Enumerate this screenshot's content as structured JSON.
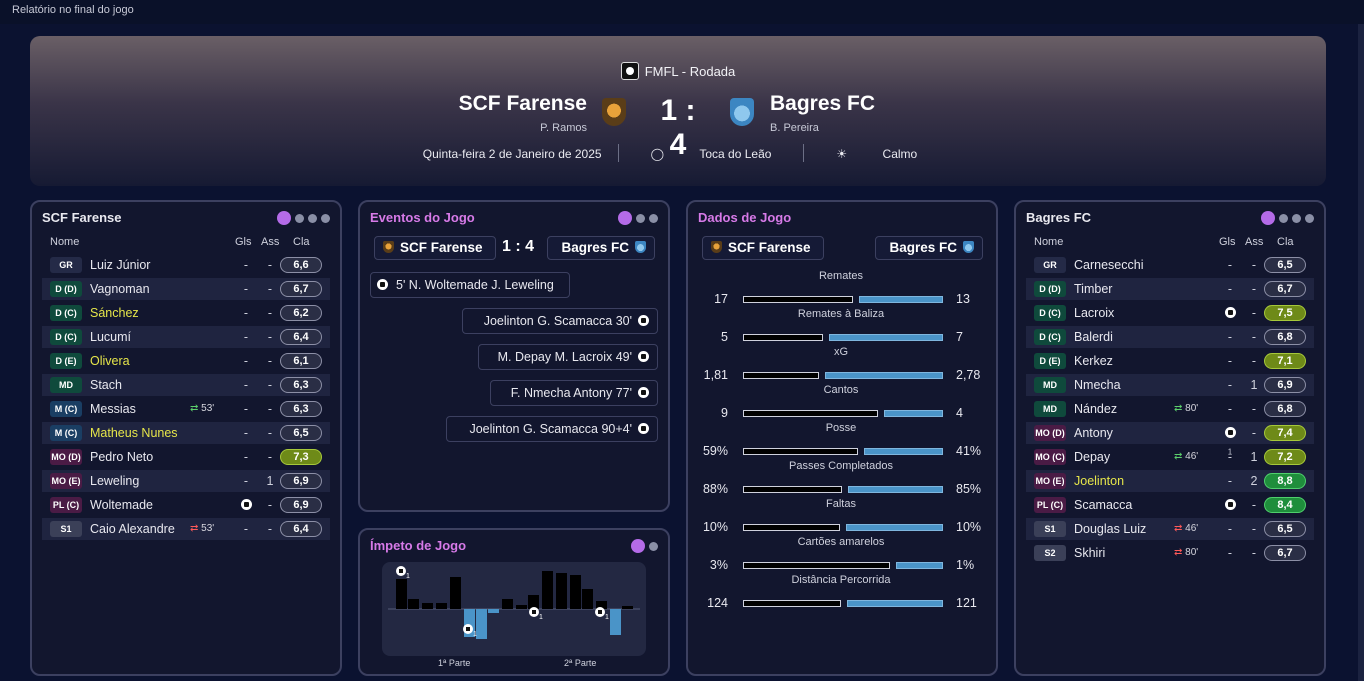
{
  "window": {
    "title": "Relatório no final do jogo"
  },
  "header": {
    "competition": "FMFL - Rodada",
    "home": {
      "name": "SCF Farense",
      "coach": "P. Ramos"
    },
    "away": {
      "name": "Bagres FC",
      "coach": "B. Pereira"
    },
    "score": "1 : 4",
    "date": "Quinta-feira 2 de Janeiro de 2025",
    "stadium": "Toca do Leão",
    "weather": "Calmo"
  },
  "columns": {
    "name": "Nome",
    "goals": "Gls",
    "assists": "Ass",
    "rating": "Cla"
  },
  "home_panel": {
    "title": "SCF Farense",
    "players": [
      {
        "pos": "GR",
        "name": "Luiz Júnior",
        "goals": "-",
        "assists": "-",
        "rating": "6,6"
      },
      {
        "pos": "D (D)",
        "name": "Vagnoman",
        "goals": "-",
        "assists": "-",
        "rating": "6,7"
      },
      {
        "pos": "D (C)",
        "name": "Sánchez",
        "goals": "-",
        "assists": "-",
        "rating": "6,2"
      },
      {
        "pos": "D (C)",
        "name": "Lucumí",
        "goals": "-",
        "assists": "-",
        "rating": "6,4"
      },
      {
        "pos": "D (E)",
        "name": "Olivera",
        "goals": "-",
        "assists": "-",
        "rating": "6,1"
      },
      {
        "pos": "MD",
        "name": "Stach",
        "goals": "-",
        "assists": "-",
        "rating": "6,3"
      },
      {
        "pos": "M (C)",
        "name": "Messias",
        "sub": "53'",
        "goals": "-",
        "assists": "-",
        "rating": "6,3"
      },
      {
        "pos": "M (C)",
        "name": "Matheus Nunes",
        "goals": "-",
        "assists": "-",
        "rating": "6,5"
      },
      {
        "pos": "MO (D)",
        "name": "Pedro Neto",
        "goals": "-",
        "assists": "-",
        "rating": "7,3"
      },
      {
        "pos": "MO (E)",
        "name": "Leweling",
        "goals": "-",
        "assists": "1",
        "rating": "6,9"
      },
      {
        "pos": "PL (C)",
        "name": "Woltemade",
        "goals": "1",
        "assists": "-",
        "rating": "6,9"
      },
      {
        "pos": "S1",
        "name": "Caio Alexandre",
        "sub": "53'",
        "goals": "-",
        "assists": "-",
        "rating": "6,4"
      }
    ]
  },
  "away_panel": {
    "title": "Bagres FC",
    "players": [
      {
        "pos": "GR",
        "name": "Carnesecchi",
        "goals": "-",
        "assists": "-",
        "rating": "6,5"
      },
      {
        "pos": "D (D)",
        "name": "Timber",
        "goals": "-",
        "assists": "-",
        "rating": "6,7"
      },
      {
        "pos": "D (C)",
        "name": "Lacroix",
        "goals": "1",
        "assists": "-",
        "rating": "7,5"
      },
      {
        "pos": "D (C)",
        "name": "Balerdi",
        "goals": "-",
        "assists": "-",
        "rating": "6,8"
      },
      {
        "pos": "D (E)",
        "name": "Kerkez",
        "goals": "-",
        "assists": "-",
        "rating": "7,1"
      },
      {
        "pos": "MD",
        "name": "Nmecha",
        "goals": "-",
        "assists": "1",
        "rating": "6,9"
      },
      {
        "pos": "MD",
        "name": "Nández",
        "sub": "80'",
        "goals": "-",
        "assists": "-",
        "rating": "6,8"
      },
      {
        "pos": "MO (D)",
        "name": "Antony",
        "goals": "1",
        "assists": "-",
        "rating": "7,4"
      },
      {
        "pos": "MO (C)",
        "name": "Depay",
        "sub": "46'",
        "goals": "-",
        "assists": "1",
        "rating": "7,2"
      },
      {
        "pos": "MO (E)",
        "name": "Joelinton",
        "goals": "-",
        "assists": "2",
        "rating": "8,8"
      },
      {
        "pos": "PL (C)",
        "name": "Scamacca",
        "goals": "2",
        "assists": "-",
        "rating": "8,4"
      },
      {
        "pos": "S1",
        "name": "Douglas Luiz",
        "sub": "46'",
        "goals": "-",
        "assists": "-",
        "rating": "6,5"
      },
      {
        "pos": "S2",
        "name": "Skhiri",
        "sub": "80'",
        "goals": "-",
        "assists": "-",
        "rating": "6,7"
      }
    ]
  },
  "events_panel": {
    "title": "Eventos do Jogo",
    "home": "SCF Farense",
    "away": "Bagres FC",
    "score": "1 : 4",
    "events": [
      {
        "side": "home",
        "text": "5'  N. Woltemade  J. Leweling"
      },
      {
        "side": "away",
        "text": "Joelinton  G. Scamacca  30'"
      },
      {
        "side": "away",
        "text": "M. Depay  M. Lacroix  49'"
      },
      {
        "side": "away",
        "text": "F. Nmecha  Antony  77'"
      },
      {
        "side": "away",
        "text": "Joelinton  G. Scamacca  90+4'"
      }
    ]
  },
  "momentum_panel": {
    "title": "Ímpeto de Jogo",
    "first_half": "1ª Parte",
    "second_half": "2ª Parte",
    "goal_count": "1"
  },
  "stats_panel": {
    "title": "Dados de Jogo",
    "home": "SCF Farense",
    "away": "Bagres FC",
    "stats": [
      {
        "label": "Remates",
        "home": "17",
        "away": "13",
        "home_share": 0.567
      },
      {
        "label": "Remates à Baliza",
        "home": "5",
        "away": "7",
        "home_share": 0.417
      },
      {
        "label": "xG",
        "home": "1,81",
        "away": "2,78",
        "home_share": 0.394
      },
      {
        "label": "Cantos",
        "home": "9",
        "away": "4",
        "home_share": 0.692
      },
      {
        "label": "Posse",
        "home": "59%",
        "away": "41%",
        "home_share": 0.59
      },
      {
        "label": "Passes Completados",
        "home": "88%",
        "away": "85%",
        "home_share": 0.509
      },
      {
        "label": "Faltas",
        "home": "10%",
        "away": "10%",
        "home_share": 0.5
      },
      {
        "label": "Cartões amarelos",
        "home": "3%",
        "away": "1%",
        "home_share": 0.75
      },
      {
        "label": "Distância Percorrida",
        "home": "124",
        "away": "121",
        "home_share": 0.506
      }
    ]
  }
}
